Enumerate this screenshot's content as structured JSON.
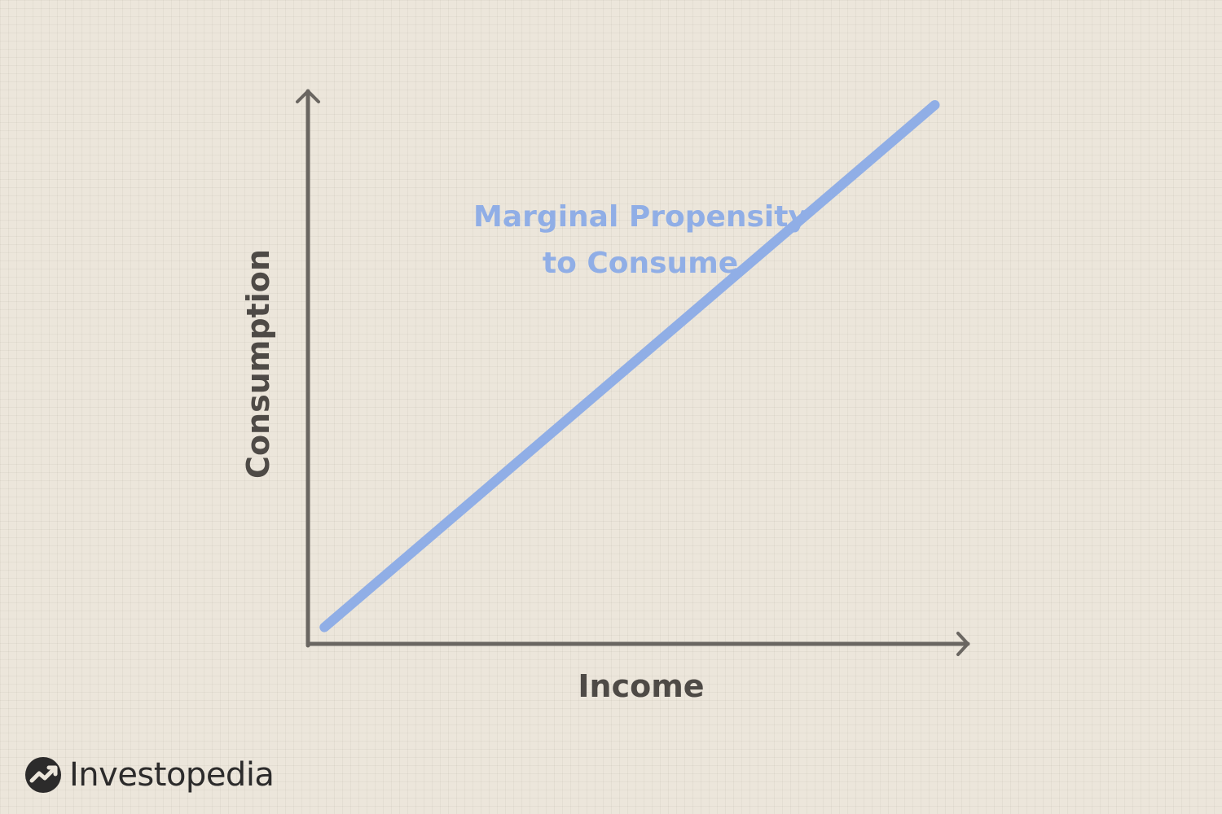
{
  "colors": {
    "background": "#ece6db",
    "axis": "#6a6661",
    "line": "#90aee6",
    "text": "#4e4a46",
    "logo": "#2c2b2b"
  },
  "chart_data": {
    "type": "line",
    "xlabel": "Income",
    "ylabel": "Consumption",
    "grid": false,
    "series": [
      {
        "name": "Marginal Propensity to Consume",
        "label_lines": [
          "Marginal Propensity",
          "to Consume"
        ],
        "points": [
          {
            "x": 0.025,
            "y": 0.03
          },
          {
            "x": 0.95,
            "y": 0.975
          }
        ]
      }
    ],
    "xlim": [
      0,
      1
    ],
    "ylim": [
      0,
      1
    ]
  },
  "logo": {
    "text": "Investopedia",
    "icon": "investopedia-logo-icon"
  }
}
